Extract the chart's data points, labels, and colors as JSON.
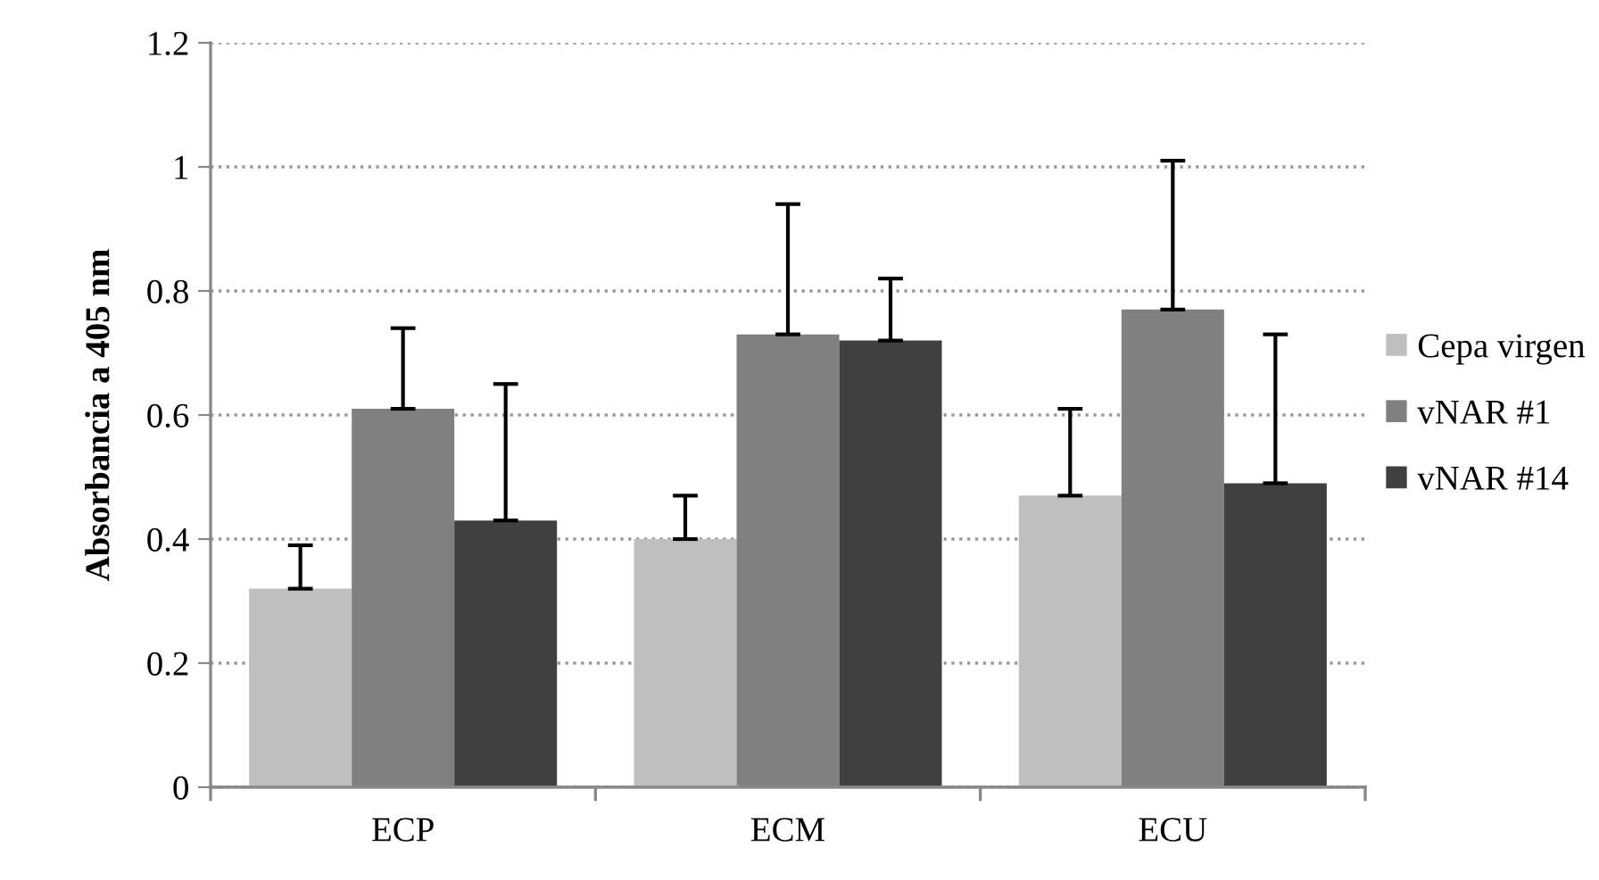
{
  "chart_data": {
    "type": "bar",
    "ylabel": "Absorbancia a 405 nm",
    "categories": [
      "ECP",
      "ECM",
      "ECU"
    ],
    "series": [
      {
        "name": "Cepa virgen",
        "color": "#bfbfbf",
        "values": [
          0.32,
          0.4,
          0.47
        ],
        "errors": [
          [
            0.32,
            0.39
          ],
          [
            0.4,
            0.47
          ],
          [
            0.47,
            0.61
          ]
        ]
      },
      {
        "name": "vNAR #1",
        "color": "#808080",
        "values": [
          0.61,
          0.73,
          0.77
        ],
        "errors": [
          [
            0.61,
            0.74
          ],
          [
            0.73,
            0.94
          ],
          [
            0.77,
            1.01
          ]
        ]
      },
      {
        "name": "vNAR #14",
        "color": "#404040",
        "values": [
          0.43,
          0.72,
          0.49
        ],
        "errors": [
          [
            0.43,
            0.65
          ],
          [
            0.72,
            0.82
          ],
          [
            0.49,
            0.73
          ]
        ]
      }
    ],
    "ylim": [
      0,
      1.2
    ],
    "yticks": [
      0,
      {
        "value": 0.2,
        "label": "0.2"
      },
      {
        "value": 0.4,
        "label": "0.4"
      },
      {
        "value": 0.6,
        "label": "0.6"
      },
      {
        "value": 0.8,
        "label": "0.8"
      },
      1,
      {
        "value": 1.2,
        "label": "1.2"
      }
    ],
    "grid": "y",
    "legend": "right"
  }
}
